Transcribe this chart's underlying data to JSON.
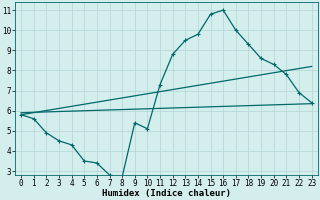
{
  "xlabel": "Humidex (Indice chaleur)",
  "ylabel": "",
  "bg_color": "#d4eeee",
  "grid_color": "#b8d8d8",
  "line_color": "#006868",
  "xlim": [
    -0.5,
    23.5
  ],
  "ylim": [
    2.8,
    11.4
  ],
  "xticks": [
    0,
    1,
    2,
    3,
    4,
    5,
    6,
    7,
    8,
    9,
    10,
    11,
    12,
    13,
    14,
    15,
    16,
    17,
    18,
    19,
    20,
    21,
    22,
    23
  ],
  "yticks": [
    3,
    4,
    5,
    6,
    7,
    8,
    9,
    10,
    11
  ],
  "line1_x": [
    0,
    1,
    2,
    3,
    4,
    5,
    6,
    7,
    8,
    9,
    10,
    11,
    12,
    13,
    14,
    15,
    16,
    17,
    18,
    19,
    20,
    21,
    22,
    23
  ],
  "line1_y": [
    5.8,
    5.6,
    4.9,
    4.5,
    4.3,
    3.5,
    3.4,
    2.8,
    2.7,
    5.4,
    5.1,
    7.3,
    8.8,
    9.5,
    9.8,
    10.8,
    11.0,
    10.0,
    9.3,
    8.6,
    8.3,
    7.8,
    6.9,
    6.4
  ],
  "line2_x": [
    0,
    23
  ],
  "line2_y": [
    5.8,
    8.2
  ],
  "line3_x": [
    0,
    23
  ],
  "line3_y": [
    5.9,
    6.35
  ],
  "marker": "+",
  "markersize": 3,
  "linewidth": 0.9,
  "tick_fontsize": 5.5,
  "xlabel_fontsize": 6.5,
  "xlabel_fontweight": "bold"
}
